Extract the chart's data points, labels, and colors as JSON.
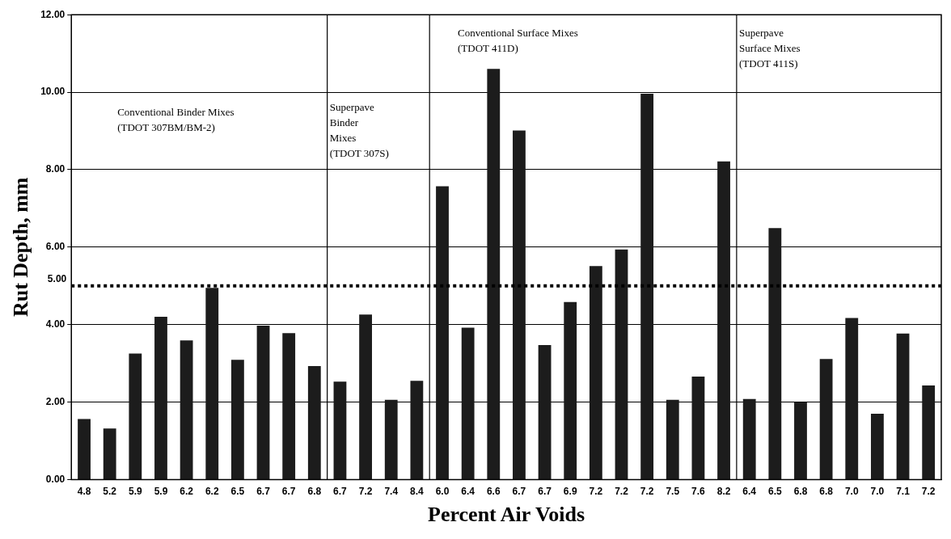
{
  "chart_data": {
    "type": "bar",
    "xlabel": "Percent Air Voids",
    "ylabel": "Rut Depth, mm",
    "categories": [
      "4.8",
      "5.2",
      "5.9",
      "5.9",
      "6.2",
      "6.2",
      "6.5",
      "6.7",
      "6.7",
      "6.8",
      "6.7",
      "7.2",
      "7.4",
      "8.4",
      "6.0",
      "6.4",
      "6.6",
      "6.7",
      "6.7",
      "6.9",
      "7.2",
      "7.2",
      "7.2",
      "7.5",
      "7.6",
      "8.2",
      "6.4",
      "6.5",
      "6.8",
      "6.8",
      "7.0",
      "7.0",
      "7.1",
      "7.2"
    ],
    "values": [
      1.56,
      1.32,
      3.25,
      4.2,
      3.59,
      4.95,
      3.09,
      3.97,
      3.78,
      2.93,
      2.53,
      4.26,
      2.06,
      2.55,
      7.57,
      3.92,
      10.6,
      9.01,
      3.47,
      4.58,
      5.51,
      5.94,
      9.96,
      2.06,
      2.66,
      8.21,
      2.08,
      6.49,
      1.99,
      3.11,
      4.17,
      1.7,
      3.77,
      2.43
    ],
    "color": "#1c1c1c",
    "ylim": [
      0,
      12
    ],
    "yticks": [
      {
        "value": 0,
        "label": "0.00"
      },
      {
        "value": 2,
        "label": "2.00"
      },
      {
        "value": 4,
        "label": "4.00"
      },
      {
        "value": 6,
        "label": "6.00"
      },
      {
        "value": 8,
        "label": "8.00"
      },
      {
        "value": 10,
        "label": "10.00"
      },
      {
        "value": 12,
        "label": "12.00"
      }
    ],
    "grid": "y",
    "ref_lines": [
      {
        "axis": "y",
        "value": 5,
        "label": "5.00",
        "color": "#000000",
        "line_style": "dotted"
      }
    ],
    "annotations": [
      "Conventional Binder Mixes\n(TDOT 307BM/BM-2)",
      "Superpave\nBinder\nMixes\n(TDOT 307S)",
      "Conventional Surface Mixes\n(TDOT 411D)",
      "Superpave\nSurface Mixes\n(TDOT 411S)"
    ],
    "legend": false
  }
}
